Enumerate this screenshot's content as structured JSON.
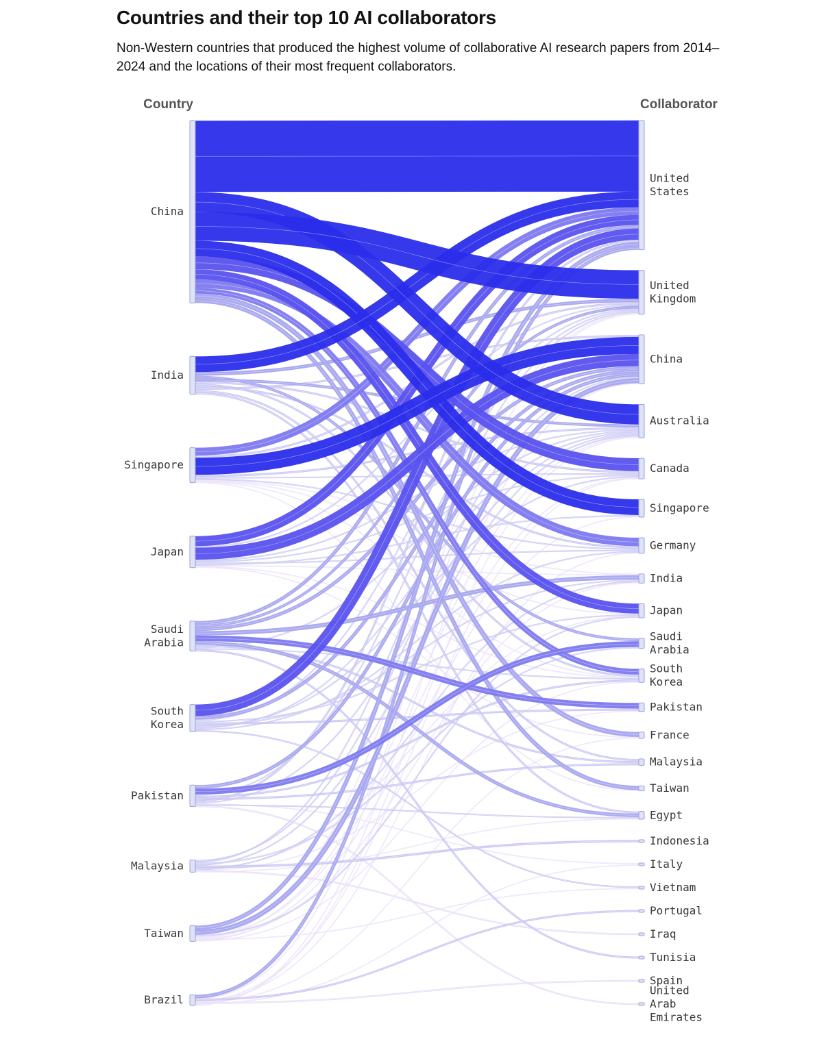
{
  "title": "Countries and their top 10 AI collaborators",
  "subtitle": "Non-Western countries that produced the highest volume of collaborative AI research papers from 2014–2024 and the locations of their most frequent collaborators.",
  "headers": {
    "left": "Country",
    "right": "Collaborator"
  },
  "colors": {
    "node_fill": "#dfe3f7",
    "node_stroke": "#9aa2d6",
    "link_scale": [
      "#e6dbf7",
      "#c4c2f2",
      "#a7a5ef",
      "#7e79f0",
      "#5a52ee",
      "#2a2dea"
    ]
  },
  "chart_data": {
    "type": "sankey",
    "sources": [
      {
        "name": "China",
        "label": [
          "China"
        ]
      },
      {
        "name": "India",
        "label": [
          "India"
        ]
      },
      {
        "name": "Singapore",
        "label": [
          "Singapore"
        ]
      },
      {
        "name": "Japan",
        "label": [
          "Japan"
        ]
      },
      {
        "name": "Saudi Arabia",
        "label": [
          "Saudi",
          "Arabia"
        ]
      },
      {
        "name": "South Korea",
        "label": [
          "South",
          "Korea"
        ]
      },
      {
        "name": "Pakistan",
        "label": [
          "Pakistan"
        ]
      },
      {
        "name": "Malaysia",
        "label": [
          "Malaysia"
        ]
      },
      {
        "name": "Taiwan",
        "label": [
          "Taiwan"
        ]
      },
      {
        "name": "Brazil",
        "label": [
          "Brazil"
        ]
      }
    ],
    "targets": [
      {
        "name": "United States",
        "label": [
          "United",
          "States"
        ]
      },
      {
        "name": "United Kingdom",
        "label": [
          "United",
          "Kingdom"
        ]
      },
      {
        "name": "China",
        "label": [
          "China"
        ]
      },
      {
        "name": "Australia",
        "label": [
          "Australia"
        ]
      },
      {
        "name": "Canada",
        "label": [
          "Canada"
        ]
      },
      {
        "name": "Singapore",
        "label": [
          "Singapore"
        ]
      },
      {
        "name": "Germany",
        "label": [
          "Germany"
        ]
      },
      {
        "name": "India",
        "label": [
          "India"
        ]
      },
      {
        "name": "Japan",
        "label": [
          "Japan"
        ]
      },
      {
        "name": "Saudi Arabia",
        "label": [
          "Saudi",
          "Arabia"
        ]
      },
      {
        "name": "South Korea",
        "label": [
          "South",
          "Korea"
        ]
      },
      {
        "name": "Pakistan",
        "label": [
          "Pakistan"
        ]
      },
      {
        "name": "France",
        "label": [
          "France"
        ]
      },
      {
        "name": "Malaysia",
        "label": [
          "Malaysia"
        ]
      },
      {
        "name": "Taiwan",
        "label": [
          "Taiwan"
        ]
      },
      {
        "name": "Egypt",
        "label": [
          "Egypt"
        ]
      },
      {
        "name": "Indonesia",
        "label": [
          "Indonesia"
        ]
      },
      {
        "name": "Italy",
        "label": [
          "Italy"
        ]
      },
      {
        "name": "Vietnam",
        "label": [
          "Vietnam"
        ]
      },
      {
        "name": "Portugal",
        "label": [
          "Portugal"
        ]
      },
      {
        "name": "Iraq",
        "label": [
          "Iraq"
        ]
      },
      {
        "name": "Tunisia",
        "label": [
          "Tunisia"
        ]
      },
      {
        "name": "Spain",
        "label": [
          "Spain"
        ]
      },
      {
        "name": "United Arab Emirates",
        "label": [
          "United",
          "Arab",
          "Emirates"
        ]
      }
    ],
    "links": [
      {
        "source": "China",
        "target": "United States",
        "value": 100
      },
      {
        "source": "China",
        "target": "Australia",
        "value": 28
      },
      {
        "source": "China",
        "target": "United Kingdom",
        "value": 40
      },
      {
        "source": "China",
        "target": "Singapore",
        "value": 22
      },
      {
        "source": "China",
        "target": "Canada",
        "value": 18
      },
      {
        "source": "China",
        "target": "Japan",
        "value": 14
      },
      {
        "source": "China",
        "target": "Germany",
        "value": 12
      },
      {
        "source": "China",
        "target": "South Korea",
        "value": 8
      },
      {
        "source": "China",
        "target": "France",
        "value": 7
      },
      {
        "source": "China",
        "target": "Taiwan",
        "value": 6
      },
      {
        "source": "India",
        "target": "United States",
        "value": 22
      },
      {
        "source": "India",
        "target": "United Kingdom",
        "value": 5
      },
      {
        "source": "India",
        "target": "Saudi Arabia",
        "value": 4
      },
      {
        "source": "India",
        "target": "Australia",
        "value": 4
      },
      {
        "source": "India",
        "target": "Canada",
        "value": 3
      },
      {
        "source": "India",
        "target": "South Korea",
        "value": 3
      },
      {
        "source": "India",
        "target": "Germany",
        "value": 3
      },
      {
        "source": "India",
        "target": "China",
        "value": 3
      },
      {
        "source": "India",
        "target": "Malaysia",
        "value": 3
      },
      {
        "source": "India",
        "target": "Egypt",
        "value": 3
      },
      {
        "source": "Singapore",
        "target": "United States",
        "value": 11
      },
      {
        "source": "Singapore",
        "target": "United Kingdom",
        "value": 3
      },
      {
        "source": "Singapore",
        "target": "China",
        "value": 24
      },
      {
        "source": "Singapore",
        "target": "Australia",
        "value": 3
      },
      {
        "source": "Singapore",
        "target": "Canada",
        "value": 2
      },
      {
        "source": "Singapore",
        "target": "Germany",
        "value": 2
      },
      {
        "source": "Singapore",
        "target": "India",
        "value": 1
      },
      {
        "source": "Singapore",
        "target": "Japan",
        "value": 1
      },
      {
        "source": "Singapore",
        "target": "South Korea",
        "value": 1
      },
      {
        "source": "Singapore",
        "target": "Taiwan",
        "value": 1
      },
      {
        "source": "Japan",
        "target": "United States",
        "value": 14
      },
      {
        "source": "Japan",
        "target": "United Kingdom",
        "value": 2
      },
      {
        "source": "Japan",
        "target": "China",
        "value": 17
      },
      {
        "source": "Japan",
        "target": "Australia",
        "value": 2
      },
      {
        "source": "Japan",
        "target": "Canada",
        "value": 2
      },
      {
        "source": "Japan",
        "target": "Germany",
        "value": 2
      },
      {
        "source": "Japan",
        "target": "Singapore",
        "value": 2
      },
      {
        "source": "Japan",
        "target": "India",
        "value": 1
      },
      {
        "source": "Japan",
        "target": "South Korea",
        "value": 1
      },
      {
        "source": "Japan",
        "target": "France",
        "value": 1
      },
      {
        "source": "Saudi Arabia",
        "target": "United States",
        "value": 5
      },
      {
        "source": "Saudi Arabia",
        "target": "United Kingdom",
        "value": 4
      },
      {
        "source": "Saudi Arabia",
        "target": "China",
        "value": 5
      },
      {
        "source": "Saudi Arabia",
        "target": "India",
        "value": 6
      },
      {
        "source": "Saudi Arabia",
        "target": "Pakistan",
        "value": 8
      },
      {
        "source": "Saudi Arabia",
        "target": "Egypt",
        "value": 5
      },
      {
        "source": "Saudi Arabia",
        "target": "Malaysia",
        "value": 3
      },
      {
        "source": "Saudi Arabia",
        "target": "Australia",
        "value": 2
      },
      {
        "source": "Saudi Arabia",
        "target": "South Korea",
        "value": 2
      },
      {
        "source": "Saudi Arabia",
        "target": "Tunisia",
        "value": 2
      },
      {
        "source": "South Korea",
        "target": "United States",
        "value": 16
      },
      {
        "source": "South Korea",
        "target": "China",
        "value": 5
      },
      {
        "source": "South Korea",
        "target": "United Kingdom",
        "value": 2
      },
      {
        "source": "South Korea",
        "target": "Japan",
        "value": 2
      },
      {
        "source": "South Korea",
        "target": "Pakistan",
        "value": 3
      },
      {
        "source": "South Korea",
        "target": "India",
        "value": 2
      },
      {
        "source": "South Korea",
        "target": "Canada",
        "value": 2
      },
      {
        "source": "South Korea",
        "target": "Australia",
        "value": 2
      },
      {
        "source": "South Korea",
        "target": "Germany",
        "value": 2
      },
      {
        "source": "South Korea",
        "target": "Vietnam",
        "value": 2
      },
      {
        "source": "Pakistan",
        "target": "China",
        "value": 5
      },
      {
        "source": "Pakistan",
        "target": "Saudi Arabia",
        "value": 8
      },
      {
        "source": "Pakistan",
        "target": "United Kingdom",
        "value": 2
      },
      {
        "source": "Pakistan",
        "target": "South Korea",
        "value": 3
      },
      {
        "source": "Pakistan",
        "target": "Malaysia",
        "value": 3
      },
      {
        "source": "Pakistan",
        "target": "United States",
        "value": 3
      },
      {
        "source": "Pakistan",
        "target": "Australia",
        "value": 2
      },
      {
        "source": "Pakistan",
        "target": "Italy",
        "value": 1
      },
      {
        "source": "Pakistan",
        "target": "Egypt",
        "value": 2
      },
      {
        "source": "Pakistan",
        "target": "United Arab Emirates",
        "value": 1
      },
      {
        "source": "Malaysia",
        "target": "China",
        "value": 2
      },
      {
        "source": "Malaysia",
        "target": "United Kingdom",
        "value": 2
      },
      {
        "source": "Malaysia",
        "target": "Saudi Arabia",
        "value": 2
      },
      {
        "source": "Malaysia",
        "target": "Australia",
        "value": 2
      },
      {
        "source": "Malaysia",
        "target": "Indonesia",
        "value": 3
      },
      {
        "source": "Malaysia",
        "target": "Japan",
        "value": 1
      },
      {
        "source": "Malaysia",
        "target": "India",
        "value": 2
      },
      {
        "source": "Malaysia",
        "target": "Pakistan",
        "value": 1
      },
      {
        "source": "Malaysia",
        "target": "Iraq",
        "value": 1
      },
      {
        "source": "Malaysia",
        "target": "Egypt",
        "value": 1
      },
      {
        "source": "Taiwan",
        "target": "United States",
        "value": 6
      },
      {
        "source": "Taiwan",
        "target": "China",
        "value": 7
      },
      {
        "source": "Taiwan",
        "target": "Japan",
        "value": 2
      },
      {
        "source": "Taiwan",
        "target": "Canada",
        "value": 1
      },
      {
        "source": "Taiwan",
        "target": "United Kingdom",
        "value": 1
      },
      {
        "source": "Taiwan",
        "target": "Australia",
        "value": 1
      },
      {
        "source": "Taiwan",
        "target": "India",
        "value": 1
      },
      {
        "source": "Taiwan",
        "target": "Vietnam",
        "value": 1
      },
      {
        "source": "Taiwan",
        "target": "Singapore",
        "value": 1
      },
      {
        "source": "Taiwan",
        "target": "South Korea",
        "value": 1
      },
      {
        "source": "Brazil",
        "target": "United States",
        "value": 5
      },
      {
        "source": "Brazil",
        "target": "United Kingdom",
        "value": 1
      },
      {
        "source": "Brazil",
        "target": "Portugal",
        "value": 2
      },
      {
        "source": "Brazil",
        "target": "Canada",
        "value": 1
      },
      {
        "source": "Brazil",
        "target": "Germany",
        "value": 1
      },
      {
        "source": "Brazil",
        "target": "France",
        "value": 1
      },
      {
        "source": "Brazil",
        "target": "Spain",
        "value": 1
      },
      {
        "source": "Brazil",
        "target": "Italy",
        "value": 1
      },
      {
        "source": "Brazil",
        "target": "Australia",
        "value": 1
      },
      {
        "source": "Brazil",
        "target": "China",
        "value": 1
      }
    ]
  }
}
